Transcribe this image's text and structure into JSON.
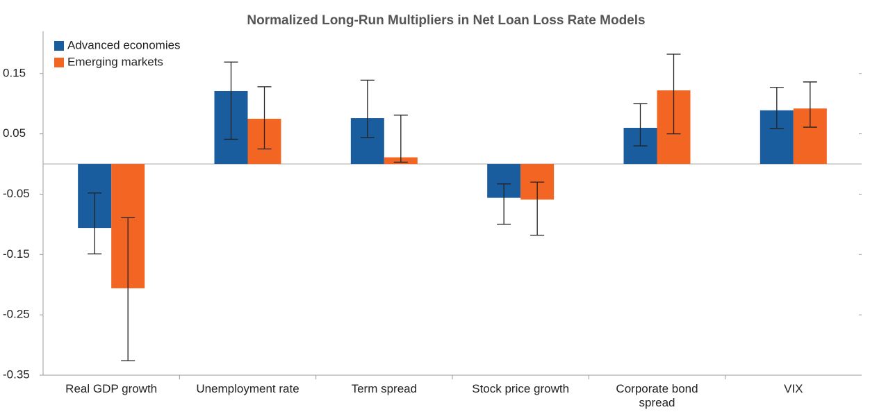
{
  "chart_data": {
    "type": "bar",
    "title": "Normalized Long-Run Multipliers in Net Loan Loss Rate Models",
    "categories": [
      "Real GDP growth",
      "Unemployment rate",
      "Term spread",
      "Stock price growth",
      "Corporate bond spread",
      "VIX"
    ],
    "series": [
      {
        "name": "Advanced economies",
        "color": "#1a5d9e",
        "values": [
          -0.106,
          0.121,
          0.076,
          -0.056,
          0.06,
          0.089
        ],
        "lower": [
          -0.149,
          0.041,
          0.044,
          -0.1,
          0.03,
          0.059
        ],
        "upper": [
          -0.048,
          0.169,
          0.139,
          -0.033,
          0.1,
          0.127
        ]
      },
      {
        "name": "Emerging markets",
        "color": "#f26522",
        "values": [
          -0.206,
          0.075,
          0.011,
          -0.059,
          0.122,
          0.092
        ],
        "lower": [
          -0.326,
          0.025,
          0.003,
          -0.118,
          0.05,
          0.061
        ],
        "upper": [
          -0.089,
          0.128,
          0.081,
          -0.03,
          0.182,
          0.136
        ]
      }
    ],
    "ylim": [
      -0.35,
      0.22
    ],
    "yticks": [
      -0.35,
      -0.25,
      -0.15,
      -0.05,
      0.05,
      0.15
    ],
    "legend": "top-left"
  }
}
